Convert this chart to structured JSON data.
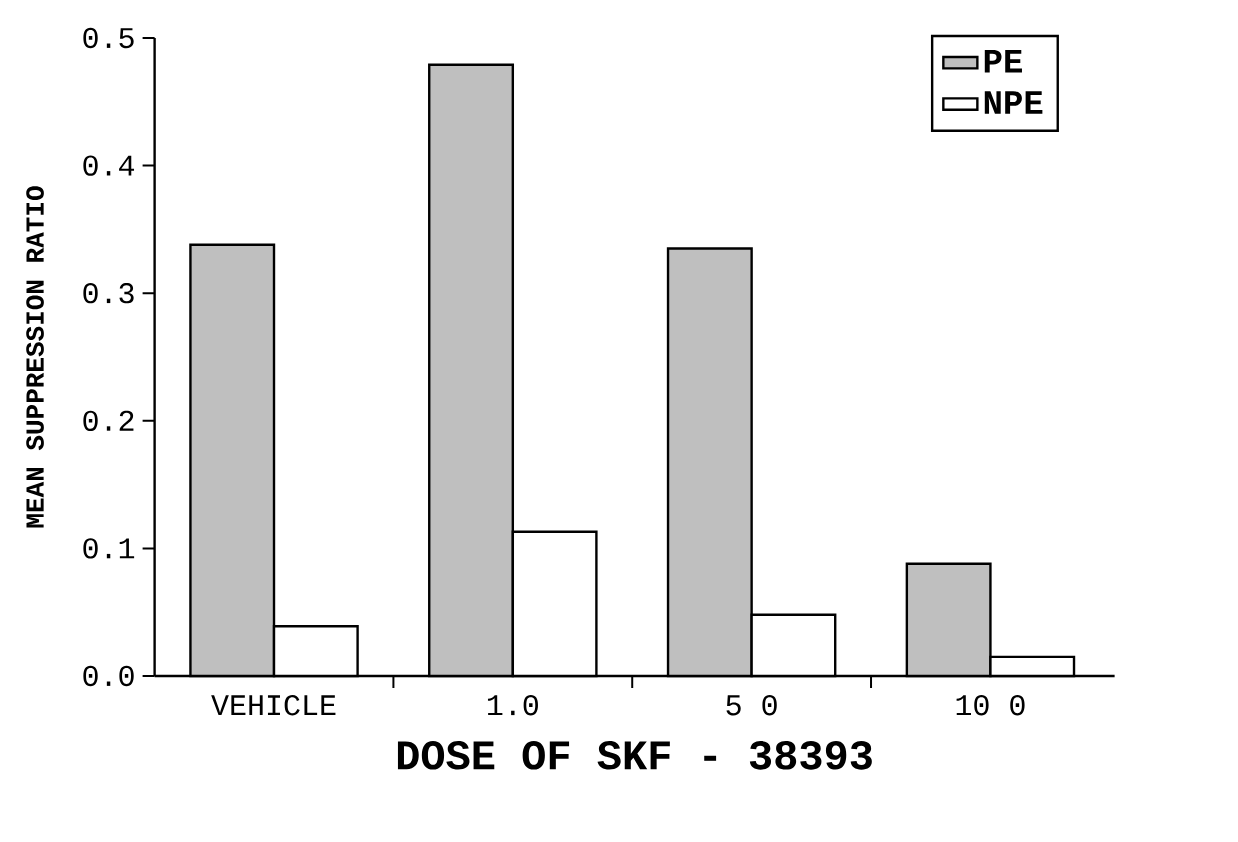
{
  "chart_data": {
    "type": "bar",
    "xlabel": "DOSE   OF SKF - 38393",
    "ylabel": "MEAN SUPPRESSION RATIO",
    "categories": [
      "VEHICLE",
      "1.0",
      "5 0",
      "10 0"
    ],
    "series": [
      {
        "name": "PE",
        "color": "#bfbfbf",
        "values": [
          0.338,
          0.479,
          0.335,
          0.088
        ]
      },
      {
        "name": "NPE",
        "color": "#ffffff",
        "values": [
          0.039,
          0.113,
          0.048,
          0.015
        ]
      }
    ],
    "ylim": [
      0,
      0.5
    ],
    "yticks": [
      {
        "value": 0,
        "label": "0.0"
      },
      {
        "value": 0.1,
        "label": "0.1"
      },
      {
        "value": 0.2,
        "label": "0.2"
      },
      {
        "value": 0.3,
        "label": "0.3"
      },
      {
        "value": 0.4,
        "label": "0.4"
      },
      {
        "value": 0.5,
        "label": "0.5"
      }
    ],
    "legend": "top right",
    "grid": false
  }
}
